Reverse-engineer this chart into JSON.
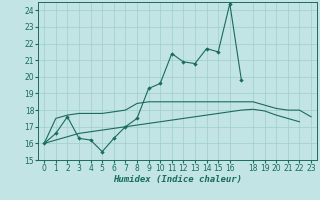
{
  "xlabel": "Humidex (Indice chaleur)",
  "background_color": "#c2e4e4",
  "grid_color": "#9ecece",
  "line_color": "#1a6b5a",
  "x_values": [
    0,
    1,
    2,
    3,
    4,
    5,
    6,
    7,
    8,
    9,
    10,
    11,
    12,
    13,
    14,
    15,
    16,
    17,
    18,
    19,
    20,
    21,
    22,
    23
  ],
  "line1_y": [
    16.0,
    16.6,
    17.6,
    16.3,
    16.2,
    15.5,
    16.3,
    17.0,
    17.5,
    19.3,
    19.6,
    21.4,
    20.9,
    20.8,
    21.7,
    21.5,
    24.4,
    19.8,
    null,
    null,
    null,
    null,
    null,
    null
  ],
  "line2_y": [
    16.0,
    17.5,
    17.7,
    17.8,
    17.8,
    17.8,
    17.9,
    18.0,
    18.4,
    18.5,
    18.5,
    18.5,
    18.5,
    18.5,
    18.5,
    18.5,
    18.5,
    18.5,
    18.5,
    18.3,
    18.1,
    18.0,
    18.0,
    17.6
  ],
  "line3_y": [
    16.0,
    16.2,
    16.4,
    16.6,
    16.7,
    16.8,
    16.9,
    17.0,
    17.1,
    17.2,
    17.3,
    17.4,
    17.5,
    17.6,
    17.7,
    17.8,
    17.9,
    18.0,
    18.05,
    17.95,
    17.7,
    17.5,
    17.3,
    null
  ],
  "xlim": [
    -0.5,
    23.5
  ],
  "ylim": [
    15,
    24.5
  ],
  "yticks": [
    15,
    16,
    17,
    18,
    19,
    20,
    21,
    22,
    23,
    24
  ],
  "xticks": [
    0,
    1,
    2,
    3,
    4,
    5,
    6,
    7,
    8,
    9,
    10,
    11,
    12,
    13,
    14,
    15,
    16,
    18,
    19,
    20,
    21,
    22,
    23
  ],
  "xtick_labels": [
    "0",
    "1",
    "2",
    "3",
    "4",
    "5",
    "6",
    "7",
    "8",
    "9",
    "10",
    "11",
    "12",
    "13",
    "14",
    "15",
    "16",
    "18",
    "19",
    "20",
    "21",
    "22",
    "23"
  ]
}
